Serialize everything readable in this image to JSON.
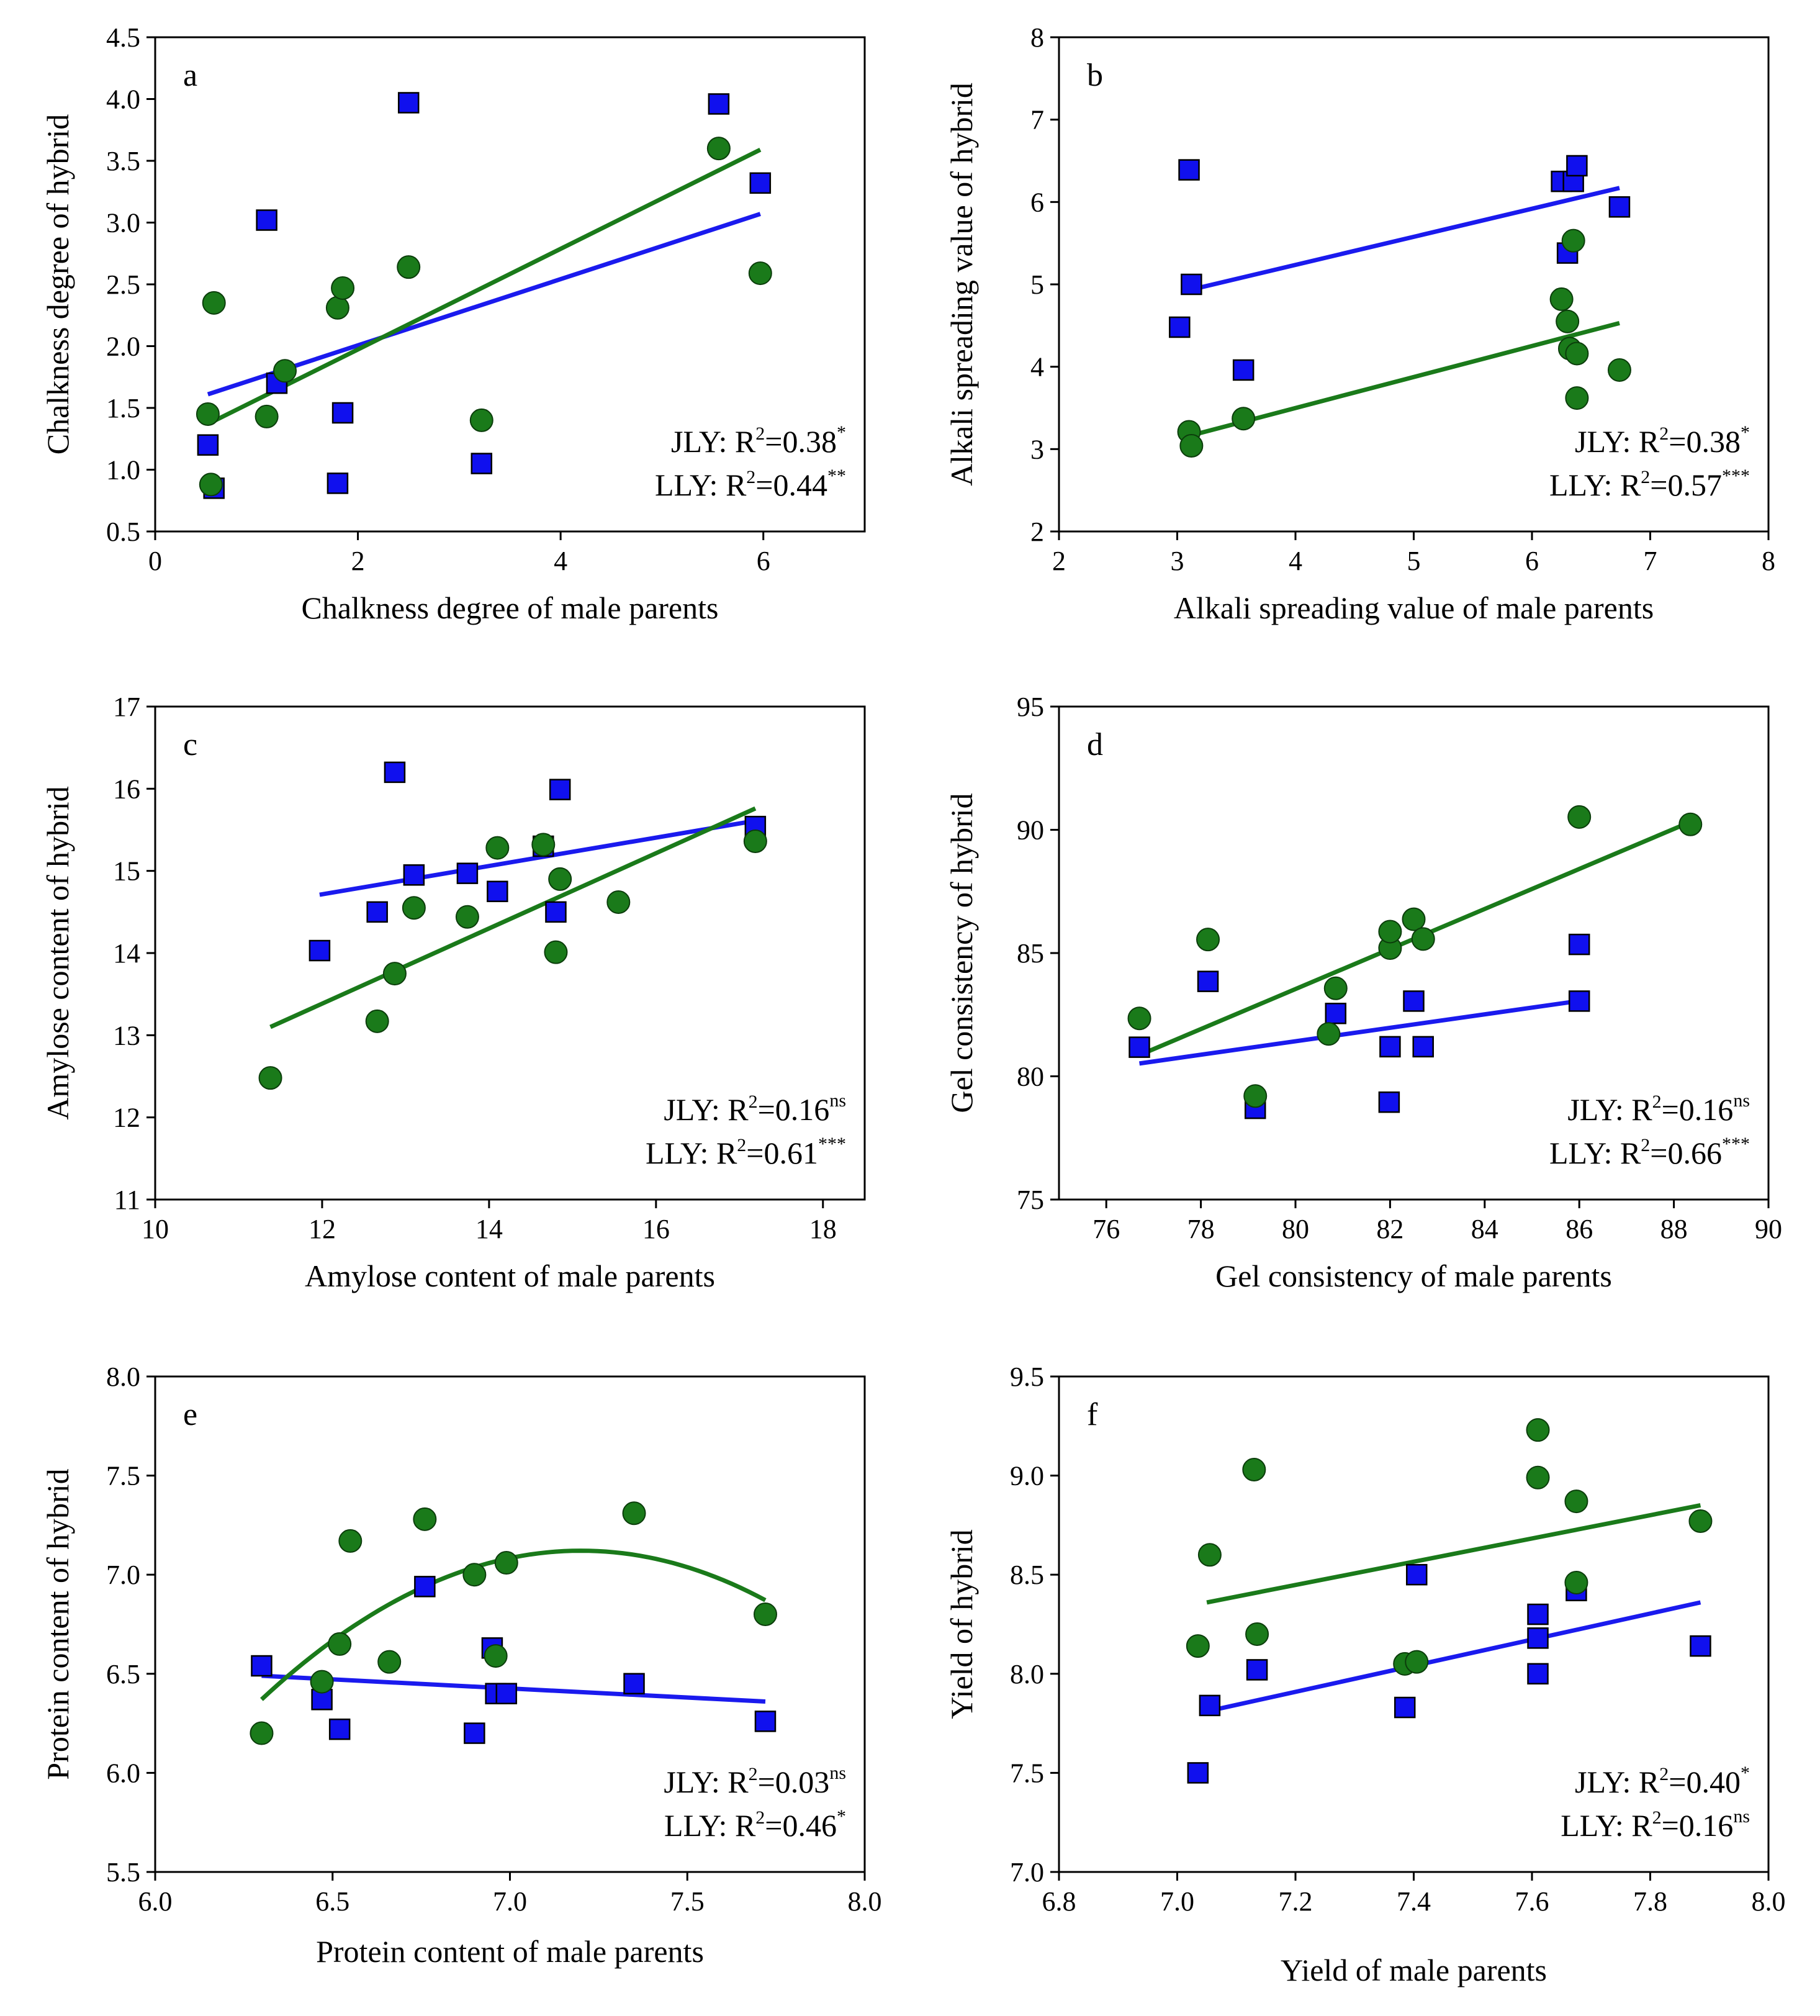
{
  "colors": {
    "jly_fill": "#1010ee",
    "lly_fill": "#1a7a1a",
    "jly_line": "#1a1aee",
    "lly_line": "#1a7a1a",
    "marker_edge": "#000000"
  },
  "markers": {
    "JLY": "square",
    "LLY": "circle"
  },
  "chart_data": [
    {
      "id": "a",
      "type": "scatter",
      "label": "a",
      "xlabel": "Chalkness degree of male parents",
      "ylabel": "Chalkness degree of hybrid",
      "xlim": [
        0,
        7
      ],
      "ylim": [
        0.5,
        4.5
      ],
      "xticks": [
        0,
        2,
        4,
        6
      ],
      "yticks": [
        0.5,
        1.0,
        1.5,
        2.0,
        2.5,
        3.0,
        3.5,
        4.0,
        4.5
      ],
      "xtick_labels": [
        "0",
        "2",
        "4",
        "6"
      ],
      "ytick_labels": [
        "0.5",
        "1.0",
        "1.5",
        "2.0",
        "2.5",
        "3.0",
        "3.5",
        "4.0",
        "4.5"
      ],
      "series": [
        {
          "name": "JLY",
          "x": [
            0.52,
            0.58,
            1.1,
            1.2,
            1.8,
            1.85,
            2.5,
            3.22,
            5.56,
            5.97
          ],
          "y": [
            1.2,
            0.85,
            3.02,
            1.7,
            0.89,
            1.46,
            3.97,
            1.05,
            3.96,
            3.32
          ],
          "fit": {
            "kind": "linear",
            "x0": 0.52,
            "y0": 1.61,
            "x1": 5.97,
            "y1": 3.07
          }
        },
        {
          "name": "LLY",
          "x": [
            0.52,
            0.55,
            0.58,
            1.1,
            1.28,
            1.8,
            1.85,
            2.5,
            3.22,
            5.56,
            5.97
          ],
          "y": [
            1.45,
            0.88,
            2.35,
            1.43,
            1.8,
            2.31,
            2.47,
            2.64,
            1.4,
            3.6,
            2.59
          ],
          "fit": {
            "kind": "linear",
            "x0": 0.52,
            "y0": 1.37,
            "x1": 5.97,
            "y1": 3.59
          }
        }
      ],
      "stats": [
        {
          "label": "JLY: R",
          "sup2": "2",
          "value": "=0.38",
          "sig": "*"
        },
        {
          "label": "LLY: R",
          "sup2": "2",
          "value": "=0.44",
          "sig": "**"
        }
      ]
    },
    {
      "id": "b",
      "type": "scatter",
      "label": "b",
      "xlabel": "Alkali spreading value of male parents",
      "ylabel": "Alkali spreading value of hybrid",
      "xlim": [
        2,
        8
      ],
      "ylim": [
        2,
        8
      ],
      "xticks": [
        2,
        3,
        4,
        5,
        6,
        7,
        8
      ],
      "yticks": [
        2,
        3,
        4,
        5,
        6,
        7,
        8
      ],
      "xtick_labels": [
        "2",
        "3",
        "4",
        "5",
        "6",
        "7",
        "8"
      ],
      "ytick_labels": [
        "2",
        "3",
        "4",
        "5",
        "6",
        "7",
        "8"
      ],
      "series": [
        {
          "name": "JLY",
          "x": [
            3.02,
            3.1,
            3.12,
            3.56,
            6.25,
            6.3,
            6.35,
            6.38,
            6.74
          ],
          "y": [
            4.48,
            6.39,
            5.0,
            3.96,
            6.25,
            5.38,
            6.25,
            6.44,
            5.94
          ],
          "fit": {
            "kind": "linear",
            "x0": 3.1,
            "y0": 4.93,
            "x1": 6.74,
            "y1": 6.17
          }
        },
        {
          "name": "LLY",
          "x": [
            3.1,
            3.12,
            3.56,
            6.25,
            6.3,
            6.32,
            6.35,
            6.38,
            6.38,
            6.74
          ],
          "y": [
            3.21,
            3.04,
            3.37,
            4.82,
            4.55,
            4.22,
            5.53,
            4.16,
            3.62,
            3.96
          ],
          "fit": {
            "kind": "linear",
            "x0": 3.1,
            "y0": 3.16,
            "x1": 6.74,
            "y1": 4.53
          }
        }
      ],
      "stats": [
        {
          "label": "JLY: R",
          "sup2": "2",
          "value": "=0.38",
          "sig": "*"
        },
        {
          "label": "LLY: R",
          "sup2": "2",
          "value": "=0.57",
          "sig": "***"
        }
      ]
    },
    {
      "id": "c",
      "type": "scatter",
      "label": "c",
      "xlabel": "Amylose content of male parents",
      "ylabel": "Amylose content of hybrid",
      "xlim": [
        10,
        18.5
      ],
      "ylim": [
        11,
        17
      ],
      "xticks": [
        10,
        12,
        14,
        16,
        18
      ],
      "yticks": [
        11,
        12,
        13,
        14,
        15,
        16,
        17
      ],
      "xtick_labels": [
        "10",
        "12",
        "14",
        "16",
        "18"
      ],
      "ytick_labels": [
        "11",
        "12",
        "13",
        "14",
        "15",
        "16",
        "17"
      ],
      "series": [
        {
          "name": "JLY",
          "x": [
            11.97,
            12.66,
            12.87,
            13.1,
            13.74,
            14.1,
            14.65,
            14.8,
            14.85,
            17.19
          ],
          "y": [
            14.03,
            14.5,
            16.2,
            14.95,
            14.97,
            14.75,
            15.3,
            14.5,
            15.99,
            15.54
          ],
          "fit": {
            "kind": "linear",
            "x0": 11.97,
            "y0": 14.71,
            "x1": 17.19,
            "y1": 15.61
          }
        },
        {
          "name": "LLY",
          "x": [
            11.38,
            12.66,
            12.87,
            13.1,
            13.74,
            14.1,
            14.65,
            14.8,
            14.85,
            15.55,
            17.19
          ],
          "y": [
            12.48,
            13.17,
            13.75,
            14.55,
            14.44,
            15.28,
            15.32,
            14.01,
            14.9,
            14.62,
            15.36
          ],
          "fit": {
            "kind": "linear",
            "x0": 11.38,
            "y0": 13.1,
            "x1": 17.19,
            "y1": 15.76
          }
        }
      ],
      "stats": [
        {
          "label": "JLY: R",
          "sup2": "2",
          "value": "=0.16",
          "sig": "ns"
        },
        {
          "label": "LLY: R",
          "sup2": "2",
          "value": "=0.61",
          "sig": "***"
        }
      ]
    },
    {
      "id": "d",
      "type": "scatter",
      "label": "d",
      "xlabel": "Gel consistency of male parents",
      "ylabel": "Gel consistency of hybrid",
      "xlim": [
        75,
        90
      ],
      "ylim": [
        75,
        95
      ],
      "xticks": [
        76,
        78,
        80,
        82,
        84,
        86,
        88,
        90
      ],
      "yticks": [
        75,
        80,
        85,
        90,
        95
      ],
      "xtick_labels": [
        "76",
        "78",
        "80",
        "82",
        "84",
        "86",
        "88",
        "90"
      ],
      "ytick_labels": [
        "75",
        "80",
        "85",
        "90",
        "95"
      ],
      "series": [
        {
          "name": "JLY",
          "x": [
            76.7,
            78.15,
            79.15,
            80.85,
            81.98,
            82.0,
            82.5,
            82.7,
            86.0,
            86.0
          ],
          "y": [
            81.18,
            83.85,
            78.7,
            82.55,
            78.95,
            81.2,
            83.05,
            81.2,
            85.35,
            83.05
          ],
          "fit": {
            "kind": "linear",
            "x0": 76.7,
            "y0": 80.52,
            "x1": 86.0,
            "y1": 83.06
          }
        },
        {
          "name": "LLY",
          "x": [
            76.7,
            78.15,
            79.15,
            80.7,
            80.85,
            82.0,
            82.0,
            82.5,
            82.7,
            86.0,
            88.35
          ],
          "y": [
            82.35,
            85.55,
            79.2,
            81.72,
            83.57,
            85.2,
            85.87,
            86.37,
            85.57,
            90.52,
            90.22
          ],
          "fit": {
            "kind": "linear",
            "x0": 76.7,
            "y0": 80.86,
            "x1": 88.35,
            "y1": 90.32
          }
        }
      ],
      "stats": [
        {
          "label": "JLY: R",
          "sup2": "2",
          "value": "=0.16",
          "sig": "ns"
        },
        {
          "label": "LLY: R",
          "sup2": "2",
          "value": "=0.66",
          "sig": "***"
        }
      ]
    },
    {
      "id": "e",
      "type": "scatter",
      "label": "e",
      "xlabel": "Protein content of male parents",
      "ylabel": "Protein content of hybrid",
      "xlim": [
        6.0,
        8.0
      ],
      "ylim": [
        5.5,
        8.0
      ],
      "xticks": [
        6.0,
        6.5,
        7.0,
        7.5,
        8.0
      ],
      "yticks": [
        5.5,
        6.0,
        6.5,
        7.0,
        7.5,
        8.0
      ],
      "xtick_labels": [
        "6.0",
        "6.5",
        "7.0",
        "7.5",
        "8.0"
      ],
      "ytick_labels": [
        "5.5",
        "6.0",
        "6.5",
        "7.0",
        "7.5",
        "8.0"
      ],
      "series": [
        {
          "name": "JLY",
          "x": [
            6.3,
            6.47,
            6.52,
            6.76,
            6.9,
            6.95,
            6.96,
            6.99,
            7.35,
            7.72
          ],
          "y": [
            6.54,
            6.37,
            6.22,
            6.94,
            6.2,
            6.63,
            6.4,
            6.4,
            6.45,
            6.26
          ],
          "fit": {
            "kind": "linear",
            "x0": 6.3,
            "y0": 6.49,
            "x1": 7.72,
            "y1": 6.36
          }
        },
        {
          "name": "LLY",
          "x": [
            6.3,
            6.47,
            6.52,
            6.55,
            6.66,
            6.76,
            6.9,
            6.96,
            6.99,
            7.35,
            7.72
          ],
          "y": [
            6.2,
            6.46,
            6.65,
            7.17,
            6.56,
            7.28,
            7.0,
            6.59,
            7.06,
            7.31,
            6.8
          ],
          "fit": {
            "kind": "quadratic",
            "x0": 6.3,
            "x1": 7.72,
            "a": -0.9256,
            "b": 13.3296,
            "c": -40.869
          }
        }
      ],
      "stats": [
        {
          "label": "JLY: R",
          "sup2": "2",
          "value": "=0.03",
          "sig": "ns"
        },
        {
          "label": "LLY: R",
          "sup2": "2",
          "value": "=0.46",
          "sig": "*"
        }
      ]
    },
    {
      "id": "f",
      "type": "scatter",
      "label": "f",
      "xlabel": "Yield of male parents",
      "ylabel": "Yield of hybrid",
      "xlim": [
        6.8,
        8.0
      ],
      "ylim": [
        7.0,
        9.5
      ],
      "xticks": [
        6.8,
        7.0,
        7.2,
        7.4,
        7.6,
        7.8,
        8.0
      ],
      "yticks": [
        7.0,
        7.5,
        8.0,
        8.5,
        9.0,
        9.5
      ],
      "xtick_labels": [
        "6.8",
        "7.0",
        "7.2",
        "7.4",
        "7.6",
        "7.8",
        "8.0"
      ],
      "ytick_labels": [
        "7.0",
        "7.5",
        "8.0",
        "8.5",
        "9.0",
        "9.5"
      ],
      "series": [
        {
          "name": "JLY",
          "x": [
            7.035,
            7.055,
            7.135,
            7.385,
            7.405,
            7.61,
            7.61,
            7.61,
            7.675,
            7.885
          ],
          "y": [
            7.5,
            7.84,
            8.02,
            7.83,
            8.5,
            8.3,
            8.18,
            8.0,
            8.42,
            8.14
          ],
          "fit": {
            "kind": "linear",
            "x0": 7.05,
            "y0": 7.81,
            "x1": 7.885,
            "y1": 8.36
          }
        },
        {
          "name": "LLY",
          "x": [
            7.035,
            7.055,
            7.13,
            7.135,
            7.385,
            7.405,
            7.61,
            7.61,
            7.675,
            7.675,
            7.885
          ],
          "y": [
            8.14,
            8.6,
            9.03,
            8.2,
            8.05,
            8.06,
            9.23,
            8.99,
            8.87,
            8.46,
            8.77
          ],
          "fit": {
            "kind": "linear",
            "x0": 7.05,
            "y0": 8.36,
            "x1": 7.885,
            "y1": 8.85
          }
        }
      ],
      "stats": [
        {
          "label": "JLY: R",
          "sup2": "2",
          "value": "=0.40",
          "sig": "*"
        },
        {
          "label": "LLY: R",
          "sup2": "2",
          "value": "=0.16",
          "sig": "ns"
        }
      ]
    }
  ]
}
